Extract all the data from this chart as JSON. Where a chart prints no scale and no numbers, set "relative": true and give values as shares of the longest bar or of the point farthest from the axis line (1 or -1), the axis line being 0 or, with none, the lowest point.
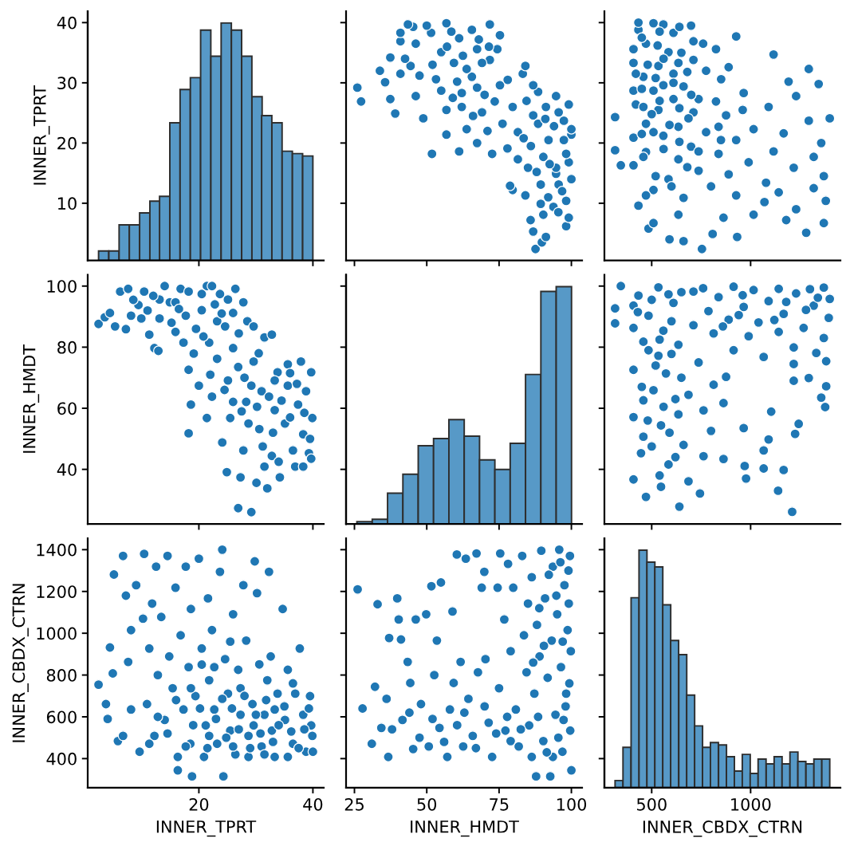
{
  "chart_data": [
    {
      "type": "bar",
      "y2label": "INNER_TPRT",
      "tick_labels": "y",
      "relative": true,
      "color": "#5799c7",
      "xlim": [
        0.5,
        41.9
      ],
      "xticks": [
        20,
        40
      ],
      "y2lim": [
        0.5,
        41.9
      ],
      "y2ticks": [
        10,
        20,
        30,
        40
      ],
      "x": [
        3.3,
        5.1,
        6.9,
        8.7,
        10.5,
        12.3,
        14.0,
        15.8,
        17.6,
        19.4,
        21.2,
        23.0,
        24.8,
        26.6,
        28.4,
        30.2,
        31.9,
        33.7,
        35.5,
        37.3,
        39.1
      ],
      "values": [
        0.04,
        0.04,
        0.15,
        0.15,
        0.2,
        0.25,
        0.27,
        0.58,
        0.72,
        0.77,
        0.97,
        0.86,
        1,
        0.97,
        0.86,
        0.69,
        0.61,
        0.58,
        0.46,
        0.45,
        0.44
      ]
    },
    {
      "type": "scatter",
      "tick_labels": false,
      "marker": "circle",
      "color": "#1f77b4",
      "xlim": [
        22.1,
        103.7
      ],
      "xticks": [
        25,
        50,
        75,
        100
      ],
      "ylim": [
        0.5,
        41.9
      ],
      "yticks": [
        10,
        20,
        30,
        40
      ],
      "x": [
        87.6,
        89.8,
        91.2,
        98.2,
        99.1,
        86.8,
        85.9,
        90.3,
        93.8,
        98.2,
        84.1,
        79.7,
        78.8,
        89.4,
        100,
        94.7,
        85,
        99.1,
        90.3,
        98.2,
        72.6,
        61.2,
        51.8,
        77.9,
        67.4,
        92.1,
        100,
        56.8,
        81.5,
        63.8,
        76.2,
        97.4,
        48.8,
        86.8,
        39.1,
        69.1,
        56.8,
        79.7,
        99.1,
        27.3,
        37.4,
        46.2,
        62.1,
        88.5,
        26,
        75.3,
        35.6,
        53.2,
        65.6,
        83.2,
        33.8,
        84.1,
        44.4,
        59.4,
        71.8,
        37.4,
        55,
        74.4,
        67.4,
        46.2,
        40.9,
        61.2,
        75.3,
        51.5,
        65.6,
        45.3,
        71.8,
        56.8,
        43.5,
        40.9,
        69.1,
        63.8,
        55,
        67.4,
        73.5,
        91.2,
        94.7,
        86.8,
        62.1,
        88.5,
        94.7,
        89.4,
        95.6,
        81.5,
        97.4,
        100,
        95.6,
        40.9,
        95.5,
        92,
        96.8,
        88,
        92.5,
        86,
        83.5,
        94,
        91,
        84.5,
        71,
        66,
        59,
        70,
        60.5,
        47.5,
        52,
        62.5,
        57,
        68,
        58.5,
        50,
        71.5,
        78,
        42.5
      ],
      "values": [
        2.4,
        3.5,
        4.4,
        6.2,
        7.6,
        5.3,
        7.2,
        8.1,
        9.4,
        10.4,
        11.3,
        12.2,
        12.9,
        13.1,
        14,
        14.9,
        15.9,
        16.8,
        17.7,
        18.2,
        18.2,
        18.6,
        18.2,
        19.1,
        20,
        20.5,
        21.4,
        21.4,
        21.8,
        22.3,
        23.2,
        23.7,
        24.1,
        24.6,
        24.9,
        25.1,
        25.5,
        26,
        26.4,
        26.9,
        27.3,
        27.8,
        28.3,
        28.5,
        29.2,
        29.6,
        30.1,
        30.6,
        31,
        31.5,
        32,
        32.8,
        32.8,
        33.3,
        33.8,
        34.2,
        35.1,
        35.6,
        35.6,
        36.5,
        36.9,
        37.4,
        37.9,
        38.3,
        38.8,
        39.3,
        39.7,
        39.9,
        39.7,
        38.3,
        33.3,
        32.3,
        28.7,
        29.2,
        26.9,
        26,
        27.8,
        29.6,
        26,
        23.2,
        15.9,
        9.9,
        13.1,
        17.3,
        20.5,
        22.3,
        25.1,
        31.5,
        8.5,
        11,
        12,
        15.2,
        16.5,
        19.5,
        20.8,
        22.8,
        24,
        27,
        22,
        24.5,
        27.5,
        28,
        30.2,
        31.2,
        33,
        34.5,
        36,
        37.2,
        38.5,
        39.5,
        36,
        30.5,
        34
      ]
    },
    {
      "type": "scatter",
      "tick_labels": false,
      "marker": "circle",
      "color": "#1f77b4",
      "xlim": [
        261,
        1454
      ],
      "xticks": [
        500,
        1000
      ],
      "ylim": [
        0.5,
        41.9
      ],
      "yticks": [
        10,
        20,
        30,
        40
      ],
      "x": [
        754,
        932,
        808,
        1281,
        661,
        590,
        484,
        509,
        1370,
        1180,
        863,
        635,
        1015,
        1230,
        433,
        1070,
        1380,
        661,
        927,
        1142,
        509,
        1319,
        800,
        1078,
        585,
        1370,
        889,
        344,
        315,
        737,
        1218,
        408,
        990,
        635,
        1319,
        838,
        471,
        1116,
        699,
        1357,
        927,
        408,
        559,
        1167,
        775,
        1015,
        635,
        471,
        1294,
        1400,
        315,
        876,
        711,
        534,
        1091,
        420,
        825,
        610,
        1230,
        965,
        509,
        661,
        1344,
        851,
        1192,
        458,
        610,
        775,
        1294,
        889,
        534,
        408,
        711,
        1116,
        585,
        825,
        471,
        711,
        927,
        610,
        433,
        699,
        509,
        559,
        433,
        471,
        458,
        458,
        408,
        420,
        408,
        838,
        737,
        686,
        737,
        635,
        559,
        509,
        520,
        680,
        560,
        640,
        450,
        590,
        500,
        640,
        540,
        700,
        450,
        610,
        680,
        480,
        560,
        650,
        530,
        450,
        540,
        640,
        760,
        520,
        600,
        850,
        960
      ],
      "values": [
        2.4,
        4.4,
        4.9,
        5.1,
        3.7,
        4,
        5.8,
        6.7,
        6.7,
        7.2,
        7.6,
        8.1,
        8.1,
        9,
        9.6,
        10.2,
        10.4,
        10.9,
        11.3,
        11.8,
        12.2,
        12.5,
        12.8,
        13.4,
        14,
        14.5,
        14.8,
        16.3,
        18.8,
        15.4,
        15.9,
        16.3,
        16.8,
        17.3,
        17.7,
        18.2,
        18.5,
        18.6,
        19.4,
        20,
        20.5,
        20.9,
        21.2,
        21.6,
        21.8,
        22.3,
        22.7,
        23.2,
        23.7,
        24.1,
        24.3,
        24.6,
        25.1,
        25.5,
        26,
        26.4,
        26.9,
        27.3,
        27.8,
        28.3,
        28.7,
        29.4,
        29.8,
        30.6,
        30.2,
        31,
        31.5,
        32,
        32.3,
        32.6,
        32.8,
        33.3,
        33.8,
        34.7,
        35.1,
        35.6,
        36.5,
        36.9,
        37.7,
        38.3,
        38.8,
        39.5,
        39.9,
        39.7,
        40,
        11.3,
        17.7,
        26,
        28.7,
        31.5,
        35.6,
        22.7,
        18.6,
        24.1,
        27.3,
        33.3,
        29.6,
        21.8,
        14.5,
        16,
        19,
        20.2,
        21.5,
        23,
        24.8,
        25.8,
        27,
        28,
        29,
        30,
        31.8,
        33,
        34,
        35,
        36.2,
        37.5,
        38.5,
        39.3,
        36.5,
        30.8,
        12.8,
        20.5,
        25.5
      ]
    },
    {
      "type": "scatter",
      "ylabel": "INNER_HMDT",
      "tick_labels": "y",
      "marker": "circle",
      "color": "#1f77b4",
      "xlim": [
        0.5,
        41.9
      ],
      "xticks": [
        20,
        40
      ],
      "ylim": [
        22.1,
        103.7
      ],
      "yticks": [
        40,
        60,
        80,
        100
      ],
      "x": [
        2.4,
        3.5,
        4.4,
        6.2,
        7.6,
        5.3,
        7.2,
        8.1,
        9.4,
        10.4,
        11.3,
        12.2,
        12.9,
        13.1,
        14,
        14.9,
        15.9,
        16.8,
        17.7,
        18.2,
        18.2,
        18.6,
        18.2,
        19.1,
        20,
        20.5,
        21.4,
        21.4,
        21.8,
        22.3,
        23.2,
        23.7,
        24.1,
        24.6,
        24.9,
        25.1,
        25.5,
        26,
        26.4,
        26.9,
        27.3,
        27.8,
        28.3,
        28.5,
        29.2,
        29.6,
        30.1,
        30.6,
        31,
        31.5,
        32,
        32.8,
        32.8,
        33.3,
        33.8,
        34.2,
        35.1,
        35.6,
        35.6,
        36.5,
        36.9,
        37.4,
        37.9,
        38.3,
        38.8,
        39.3,
        39.7,
        39.9,
        39.7,
        38.3,
        33.3,
        32.3,
        28.7,
        29.2,
        26.9,
        26,
        27.8,
        29.6,
        26,
        23.2,
        15.9,
        9.9,
        13.1,
        17.3,
        20.5,
        22.3,
        25.1,
        31.5,
        8.5,
        11,
        12,
        15.2,
        16.5,
        19.5,
        20.8,
        22.8,
        24,
        27,
        22,
        24.5,
        27.5,
        28,
        30.2,
        31.2,
        33,
        34.5,
        36,
        37.2,
        38.5,
        39.5,
        36,
        30.5,
        34
      ],
      "values": [
        87.6,
        89.8,
        91.2,
        98.2,
        99.1,
        86.8,
        85.9,
        90.3,
        93.8,
        98.2,
        84.1,
        79.7,
        78.8,
        89.4,
        100,
        94.7,
        85,
        99.1,
        90.3,
        98.2,
        72.6,
        61.2,
        51.8,
        77.9,
        67.4,
        92.1,
        100,
        56.8,
        81.5,
        63.8,
        76.2,
        97.4,
        48.8,
        86.8,
        39.1,
        69.1,
        56.8,
        79.7,
        99.1,
        27.3,
        37.4,
        46.2,
        62.1,
        88.5,
        26,
        75.3,
        35.6,
        53.2,
        65.6,
        83.2,
        33.8,
        84.1,
        44.4,
        59.4,
        71.8,
        37.4,
        55,
        74.4,
        67.4,
        46.2,
        40.9,
        61.2,
        75.3,
        51.5,
        65.6,
        45.3,
        71.8,
        56.8,
        43.5,
        40.9,
        69.1,
        63.8,
        55,
        67.4,
        73.5,
        91.2,
        94.7,
        86.8,
        62.1,
        88.5,
        94.7,
        89.4,
        95.6,
        81.5,
        97.4,
        100,
        95.6,
        40.9,
        95.5,
        92,
        96.8,
        88,
        92.5,
        86,
        83.5,
        94,
        91,
        84.5,
        71,
        66,
        59,
        70,
        60.5,
        47.5,
        52,
        62.5,
        57,
        68,
        58.5,
        50,
        71.5,
        78,
        42.5
      ]
    },
    {
      "type": "bar",
      "tick_labels": false,
      "relative": true,
      "color": "#5799c7",
      "xlim": [
        22.1,
        103.7
      ],
      "xticks": [
        25,
        50,
        75,
        100
      ],
      "y2lim": [
        22.1,
        103.7
      ],
      "y2ticks": [
        40,
        60,
        80,
        100
      ],
      "x": [
        28.5,
        33.8,
        39.1,
        44.4,
        49.7,
        55.0,
        60.3,
        65.6,
        70.9,
        76.2,
        81.5,
        86.8,
        92.1,
        97.4
      ],
      "values": [
        0.01,
        0.02,
        0.13,
        0.21,
        0.33,
        0.36,
        0.44,
        0.37,
        0.27,
        0.23,
        0.34,
        0.63,
        0.98,
        1
      ]
    },
    {
      "type": "scatter",
      "tick_labels": false,
      "marker": "circle",
      "color": "#1f77b4",
      "xlim": [
        261,
        1454
      ],
      "xticks": [
        500,
        1000
      ],
      "ylim": [
        22.1,
        103.7
      ],
      "yticks": [
        40,
        60,
        80,
        100
      ],
      "x": [
        1210,
        640,
        1139,
        744,
        547,
        471,
        686,
        977,
        408,
        1167,
        970,
        1066,
        585,
        863,
        762,
        446,
        1066,
        661,
        1091,
        458,
        1225,
        800,
        965,
        547,
        1243,
        408,
        635,
        1104,
        762,
        1377,
        863,
        458,
        1357,
        686,
        509,
        1382,
        813,
        1218,
        1294,
        876,
        572,
        408,
        1218,
        737,
        1382,
        1066,
        534,
        1332,
        914,
        1218,
        635,
        458,
        1370,
        990,
        813,
        1142,
        559,
        1268,
        711,
        315,
        1040,
        889,
        1395,
        484,
        1167,
        787,
        315,
        965,
        1319,
        610,
        1091,
        1400,
        838,
        433,
        1230,
        711,
        1015,
        1370,
        534,
        344,
        914,
        1142,
        585,
        408,
        408,
        484,
        540,
        620,
        500,
        590,
        480,
        560,
        620,
        450,
        650,
        520,
        600,
        540,
        600,
        430,
        500,
        650,
        760,
        960,
        1180,
        1280,
        1300,
        1120,
        1340,
        940,
        860
      ],
      "values": [
        26.1,
        27.8,
        33,
        32.1,
        34.3,
        31,
        36.1,
        37,
        36.7,
        39.8,
        41.1,
        40.3,
        41.6,
        43.4,
        44.3,
        45.3,
        46.2,
        48,
        49.8,
        50.7,
        51.6,
        52.6,
        53.5,
        54.4,
        54.9,
        57.1,
        58,
        58.9,
        59.3,
        60.4,
        61.7,
        62.6,
        63.5,
        64.4,
        65.9,
        67.2,
        67.7,
        69,
        69.9,
        70.3,
        71.4,
        72.6,
        74.5,
        75,
        75.4,
        76.8,
        77.2,
        78.1,
        79,
        79.9,
        80.8,
        81.8,
        83,
        83.6,
        84.5,
        85,
        85.4,
        86.3,
        87.2,
        87.8,
        88.1,
        89,
        89.6,
        90.3,
        90.9,
        91.8,
        92.7,
        93.2,
        93.6,
        94.5,
        95.1,
        95.8,
        96.4,
        96.9,
        97.6,
        98.2,
        98.7,
        99.5,
        99.6,
        100,
        99.8,
        99.1,
        97.3,
        93.6,
        86.3,
        79,
        38,
        44,
        47.5,
        52,
        56,
        60.5,
        63,
        67,
        70,
        74,
        77.8,
        82.5,
        88.5,
        91.5,
        95.5,
        98,
        99.3,
        97,
        94.8,
        92.2,
        99,
        88.9,
        96.2,
        90.5,
        86.8
      ]
    },
    {
      "type": "scatter",
      "xlabel": "INNER_TPRT",
      "ylabel": "INNER_CBDX_CTRN",
      "marker": "circle",
      "color": "#1f77b4",
      "xlim": [
        0.5,
        41.9
      ],
      "xticks": [
        20,
        40
      ],
      "ylim": [
        261,
        1454
      ],
      "yticks": [
        400,
        600,
        800,
        1000,
        1200,
        1400
      ],
      "x": [
        2.4,
        4.4,
        4.9,
        5.1,
        3.7,
        4,
        5.8,
        6.7,
        6.7,
        7.2,
        7.6,
        8.1,
        8.1,
        9,
        9.6,
        10.2,
        10.4,
        10.9,
        11.3,
        11.8,
        12.2,
        12.5,
        12.8,
        13.4,
        14,
        14.5,
        14.8,
        16.3,
        18.8,
        15.4,
        15.9,
        16.3,
        16.8,
        17.3,
        17.7,
        18.2,
        18.5,
        18.6,
        19.4,
        20,
        20.5,
        20.9,
        21.2,
        21.6,
        21.8,
        22.3,
        22.7,
        23.2,
        23.7,
        24.1,
        24.3,
        24.6,
        25.1,
        25.5,
        26,
        26.4,
        26.9,
        27.3,
        27.8,
        28.3,
        28.7,
        29.4,
        29.8,
        30.6,
        30.2,
        31,
        31.5,
        32,
        32.3,
        32.6,
        32.8,
        33.3,
        33.8,
        34.7,
        35.1,
        35.6,
        36.5,
        36.9,
        37.7,
        38.3,
        38.8,
        39.5,
        39.9,
        39.7,
        40,
        11.3,
        17.7,
        26,
        28.7,
        31.5,
        35.6,
        22.7,
        18.6,
        24.1,
        27.3,
        33.3,
        29.6,
        21.8,
        14.5,
        16,
        19,
        20.2,
        21.5,
        23,
        24.8,
        25.8,
        27,
        28,
        29,
        30,
        31.8,
        33,
        34,
        35,
        36.2,
        37.5,
        38.5,
        39.3,
        36.5,
        30.8,
        12.8,
        20.5,
        25.5
      ],
      "values": [
        754,
        932,
        808,
        1281,
        661,
        590,
        484,
        509,
        1370,
        1180,
        863,
        635,
        1015,
        1230,
        433,
        1070,
        1380,
        661,
        927,
        1142,
        509,
        1319,
        800,
        1078,
        585,
        1370,
        889,
        344,
        315,
        737,
        1218,
        408,
        990,
        635,
        1319,
        838,
        471,
        1116,
        699,
        1357,
        927,
        408,
        559,
        1167,
        775,
        1015,
        635,
        471,
        1294,
        1400,
        315,
        876,
        711,
        534,
        1091,
        420,
        825,
        610,
        1230,
        965,
        509,
        661,
        1344,
        851,
        1192,
        458,
        610,
        775,
        1294,
        889,
        534,
        408,
        711,
        1116,
        585,
        825,
        471,
        711,
        927,
        610,
        433,
        699,
        509,
        559,
        433,
        471,
        458,
        458,
        408,
        420,
        408,
        838,
        737,
        686,
        737,
        635,
        559,
        509,
        520,
        680,
        560,
        640,
        450,
        590,
        500,
        640,
        540,
        700,
        450,
        610,
        680,
        480,
        560,
        650,
        530,
        450,
        540,
        640,
        760,
        520,
        600,
        850,
        960
      ]
    },
    {
      "type": "scatter",
      "xlabel": "INNER_HMDT",
      "tick_labels": "x",
      "marker": "circle",
      "color": "#1f77b4",
      "xlim": [
        22.1,
        103.7
      ],
      "xticks": [
        25,
        50,
        75,
        100
      ],
      "ylim": [
        261,
        1454
      ],
      "yticks": [
        400,
        600,
        800,
        1000,
        1200,
        1400
      ],
      "x": [
        26.1,
        27.8,
        33,
        32.1,
        34.3,
        31,
        36.1,
        37,
        36.7,
        39.8,
        41.1,
        40.3,
        41.6,
        43.4,
        44.3,
        45.3,
        46.2,
        48,
        49.8,
        50.7,
        51.6,
        52.6,
        53.5,
        54.4,
        54.9,
        57.1,
        58,
        58.9,
        59.3,
        60.4,
        61.7,
        62.6,
        63.5,
        64.4,
        65.9,
        67.2,
        67.7,
        69,
        69.9,
        70.3,
        71.4,
        72.6,
        74.5,
        75,
        75.4,
        76.8,
        77.2,
        78.1,
        79,
        79.9,
        80.8,
        81.8,
        83,
        83.6,
        84.5,
        85,
        85.4,
        86.3,
        87.2,
        87.8,
        88.1,
        89,
        89.6,
        90.3,
        90.9,
        91.8,
        92.7,
        93.2,
        93.6,
        94.5,
        95.1,
        95.8,
        96.4,
        96.9,
        97.6,
        98.2,
        98.7,
        99.5,
        99.6,
        100,
        99.8,
        99.1,
        97.3,
        93.6,
        86.3,
        79,
        38,
        44,
        47.5,
        52,
        56,
        60.5,
        63,
        67,
        70,
        74,
        77.8,
        82.5,
        88.5,
        91.5,
        95.5,
        98,
        99.3,
        97,
        94.8,
        92.2,
        99,
        88.9,
        96.2,
        90.5,
        86.8
      ],
      "values": [
        1210,
        640,
        1139,
        744,
        547,
        471,
        686,
        977,
        408,
        1167,
        970,
        1066,
        585,
        863,
        762,
        446,
        1066,
        661,
        1091,
        458,
        1225,
        800,
        965,
        547,
        1243,
        408,
        635,
        1104,
        762,
        1377,
        863,
        458,
        1357,
        686,
        509,
        1382,
        813,
        1218,
        1294,
        876,
        572,
        408,
        1218,
        737,
        1382,
        1066,
        534,
        1332,
        914,
        1218,
        635,
        458,
        1370,
        990,
        813,
        1142,
        559,
        1268,
        711,
        315,
        1040,
        889,
        1395,
        484,
        1167,
        787,
        315,
        965,
        1319,
        610,
        1091,
        1400,
        838,
        433,
        1230,
        711,
        1015,
        1370,
        534,
        344,
        914,
        1142,
        585,
        408,
        408,
        484,
        540,
        620,
        500,
        590,
        480,
        560,
        620,
        450,
        650,
        520,
        600,
        540,
        600,
        430,
        500,
        650,
        760,
        960,
        1180,
        1280,
        1300,
        1120,
        1340,
        940,
        860
      ]
    },
    {
      "type": "bar",
      "xlabel": "INNER_CBDX_CTRN",
      "tick_labels": "x",
      "relative": true,
      "color": "#5799c7",
      "xlim": [
        261,
        1454
      ],
      "xticks": [
        500,
        1000
      ],
      "y2lim": [
        261,
        1454
      ],
      "y2ticks": [
        400,
        600,
        800,
        1000,
        1200,
        1400
      ],
      "x": [
        335,
        375,
        416,
        456,
        496,
        536,
        576,
        616,
        657,
        697,
        737,
        777,
        817,
        858,
        898,
        938,
        978,
        1018,
        1058,
        1099,
        1139,
        1179,
        1219,
        1259,
        1300,
        1340,
        1380
      ],
      "values": [
        0.03,
        0.17,
        0.8,
        1,
        0.95,
        0.93,
        0.77,
        0.62,
        0.56,
        0.39,
        0.26,
        0.17,
        0.19,
        0.18,
        0.13,
        0.07,
        0.14,
        0.06,
        0.12,
        0.1,
        0.13,
        0.1,
        0.15,
        0.11,
        0.1,
        0.12,
        0.12
      ]
    }
  ]
}
